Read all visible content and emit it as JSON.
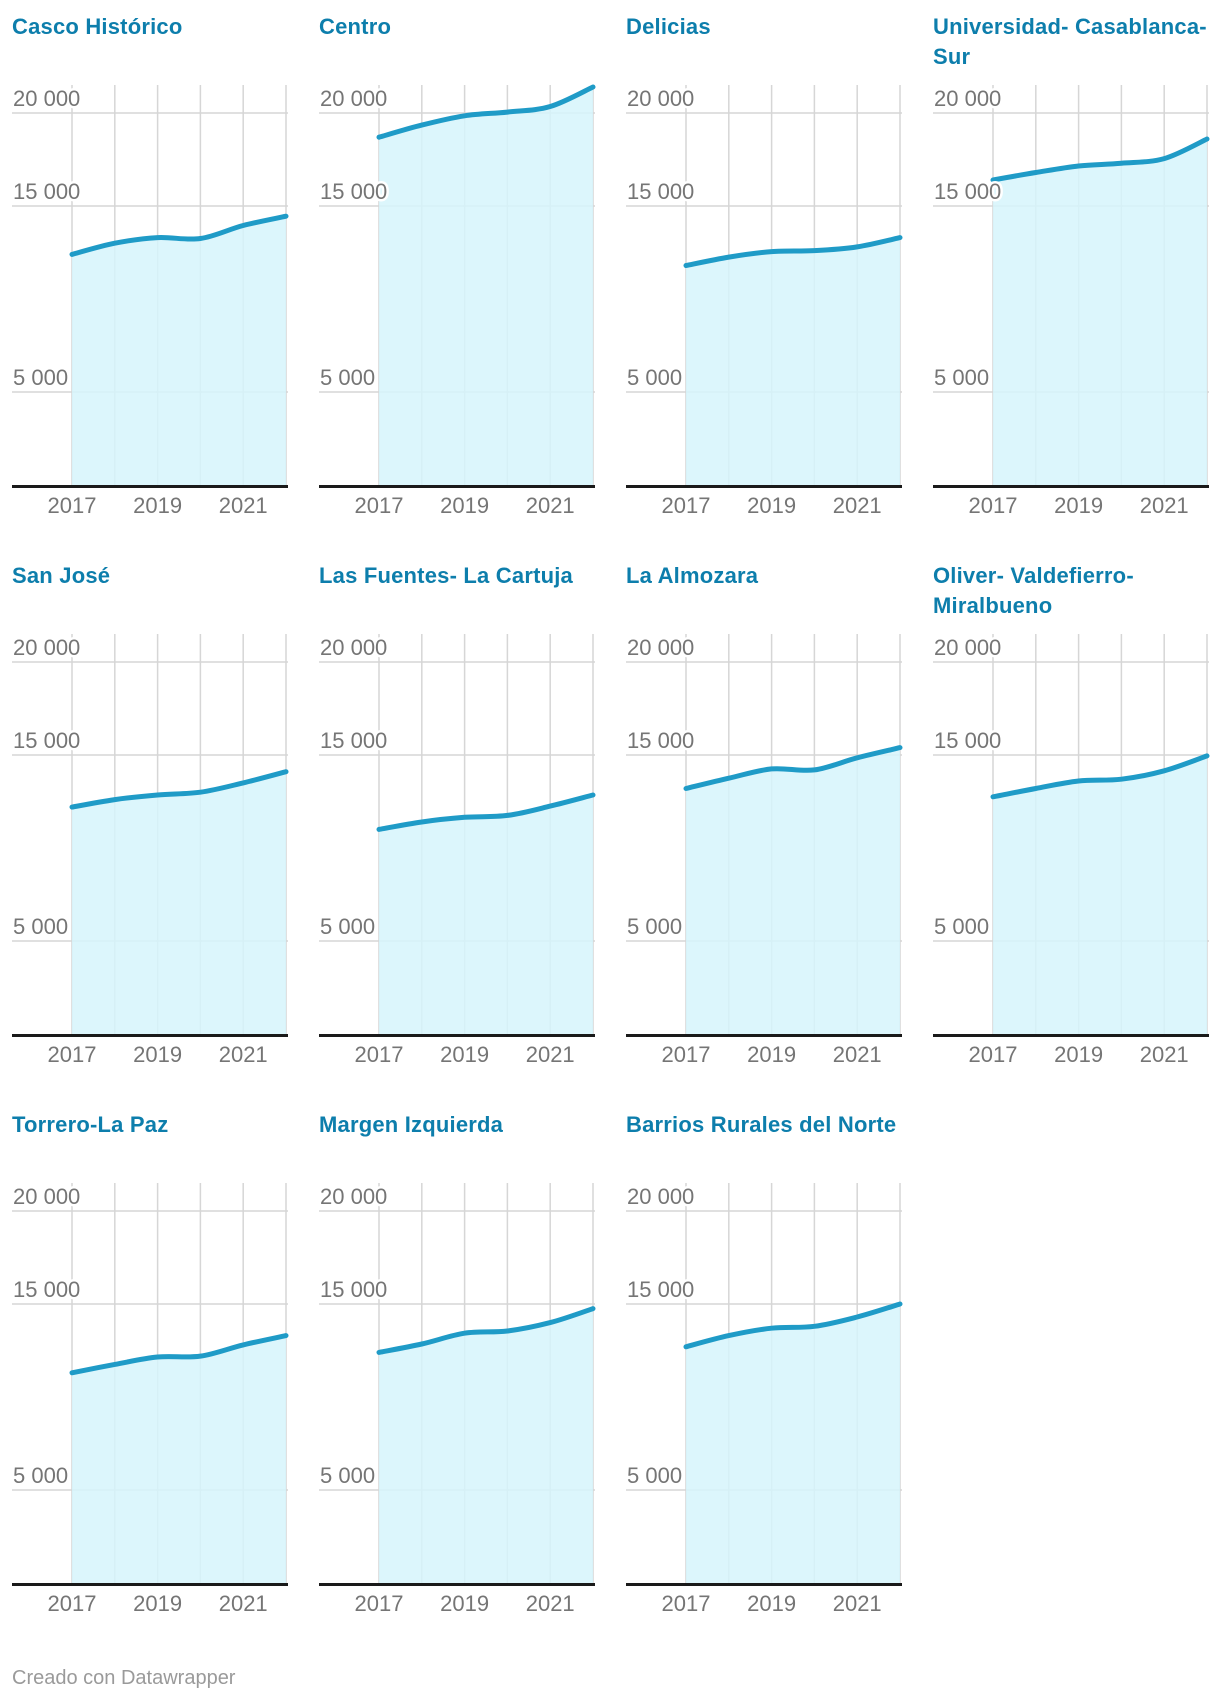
{
  "page": {
    "background": "#ffffff",
    "footer_prefix": "Creado con ",
    "footer_link": "Datawrapper",
    "footer_text": "Creado con Datawrapper"
  },
  "chart_data": {
    "type": "area",
    "layout": "small-multiples-grid-4-columns",
    "x": [
      2017,
      2018,
      2019,
      2020,
      2021,
      2022
    ],
    "x_tick_labels": [
      "2017",
      "2019",
      "2021"
    ],
    "x_tick_years": [
      2017,
      2019,
      2021
    ],
    "y_ticks": [
      20000,
      15000,
      5000
    ],
    "y_tick_labels": [
      "20 000",
      "15 000",
      "5 000"
    ],
    "ylim": [
      0,
      21505
    ],
    "grid": true,
    "legend": "none",
    "line_color": "#1f9bc7",
    "area_fill_color": "#d6f4fb",
    "title_color": "#0d7eac",
    "gridline_color": "#d6d6d6",
    "axis_color": "#1a1a1a",
    "tick_label_color": "#757575",
    "series": [
      {
        "name": "Casco Histórico",
        "values": [
          12400,
          13000,
          13300,
          13250,
          13950,
          14450
        ]
      },
      {
        "name": "Centro",
        "values": [
          18700,
          19350,
          19850,
          20050,
          20350,
          21400
        ]
      },
      {
        "name": "Delicias",
        "values": [
          11800,
          12250,
          12550,
          12600,
          12800,
          13300
        ]
      },
      {
        "name": "Universidad- Casablanca- Sur",
        "values": [
          16400,
          16800,
          17150,
          17300,
          17550,
          18600
        ]
      },
      {
        "name": "San José",
        "values": [
          12200,
          12600,
          12850,
          13000,
          13500,
          14100
        ]
      },
      {
        "name": "Las Fuentes- La Cartuja",
        "values": [
          11000,
          11400,
          11650,
          11750,
          12250,
          12850
        ]
      },
      {
        "name": "La Almozara",
        "values": [
          13200,
          13750,
          14250,
          14200,
          14850,
          15400
        ]
      },
      {
        "name": "Oliver- Valdefierro- Miralbueno",
        "values": [
          12750,
          13200,
          13600,
          13700,
          14150,
          14950
        ]
      },
      {
        "name": "Torrero-La Paz",
        "values": [
          11300,
          11750,
          12150,
          12200,
          12800,
          13300
        ]
      },
      {
        "name": "Margen Izquierda",
        "values": [
          12400,
          12850,
          13430,
          13550,
          14000,
          14750
        ]
      },
      {
        "name": "Barrios Rurales del Norte",
        "values": [
          12700,
          13300,
          13700,
          13800,
          14300,
          15000
        ]
      }
    ]
  }
}
